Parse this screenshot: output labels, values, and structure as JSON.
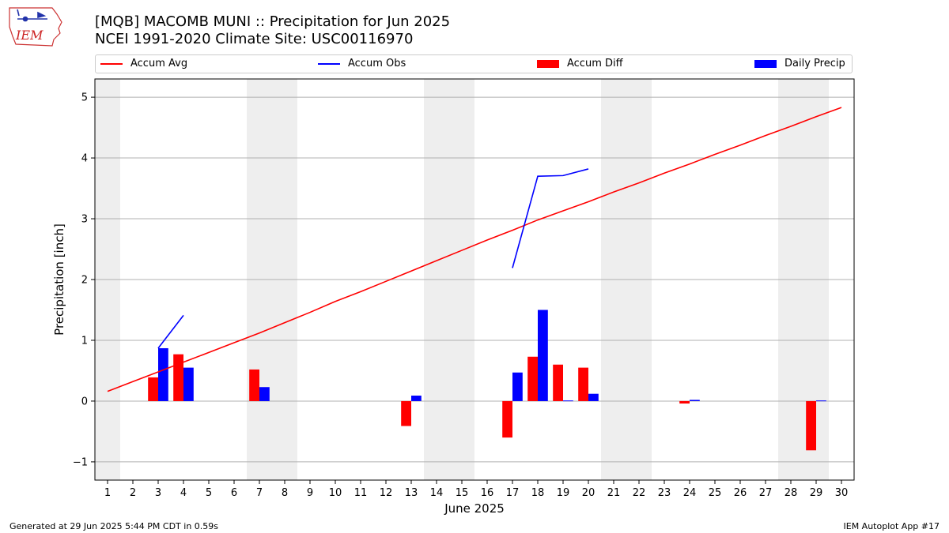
{
  "header": {
    "title_line1": "[MQB] MACOMB MUNI :: Precipitation for Jun 2025",
    "title_line2": "NCEI 1991-2020 Climate Site: USC00116970",
    "logo_text": "IEM"
  },
  "legend": {
    "avg_label": "Accum Avg",
    "obs_label": "Accum Obs",
    "diff_label": "Accum Diff",
    "daily_label": "Daily Precip"
  },
  "colors": {
    "avg": "#ff0000",
    "obs": "#0000ff",
    "diff": "#ff0000",
    "daily": "#0000ff",
    "weekend": "#eeeeee",
    "grid": "#b0b0b0"
  },
  "chart_data": {
    "type": "bar",
    "xlabel": "June 2025",
    "ylabel": "Precipitation [inch]",
    "xlim": [
      0.5,
      30.5
    ],
    "ylim": [
      -1.3,
      5.3
    ],
    "yticks": [
      -1,
      0,
      1,
      2,
      3,
      4,
      5
    ],
    "ytick_labels": [
      "−1",
      "0",
      "1",
      "2",
      "3",
      "4",
      "5"
    ],
    "days": [
      1,
      2,
      3,
      4,
      5,
      6,
      7,
      8,
      9,
      10,
      11,
      12,
      13,
      14,
      15,
      16,
      17,
      18,
      19,
      20,
      21,
      22,
      23,
      24,
      25,
      26,
      27,
      28,
      29,
      30
    ],
    "weekend_days": [
      1,
      7,
      8,
      14,
      15,
      21,
      22,
      28,
      29
    ],
    "grid": true,
    "series": [
      {
        "name": "Accum Avg",
        "kind": "line",
        "points": [
          [
            1,
            0.16
          ],
          [
            2,
            0.32
          ],
          [
            3,
            0.48
          ],
          [
            4,
            0.64
          ],
          [
            5,
            0.8
          ],
          [
            6,
            0.96
          ],
          [
            7,
            1.12
          ],
          [
            8,
            1.29
          ],
          [
            9,
            1.46
          ],
          [
            10,
            1.64
          ],
          [
            11,
            1.8
          ],
          [
            12,
            1.97
          ],
          [
            13,
            2.14
          ],
          [
            14,
            2.31
          ],
          [
            15,
            2.48
          ],
          [
            16,
            2.65
          ],
          [
            17,
            2.81
          ],
          [
            18,
            2.98
          ],
          [
            19,
            3.13
          ],
          [
            20,
            3.28
          ],
          [
            21,
            3.44
          ],
          [
            22,
            3.59
          ],
          [
            23,
            3.75
          ],
          [
            24,
            3.9
          ],
          [
            25,
            4.06
          ],
          [
            26,
            4.21
          ],
          [
            27,
            4.37
          ],
          [
            28,
            4.52
          ],
          [
            29,
            4.68
          ],
          [
            30,
            4.83
          ]
        ]
      },
      {
        "name": "Accum Obs",
        "kind": "line",
        "segments": [
          [
            [
              3,
              0.87
            ],
            [
              4,
              1.41
            ]
          ],
          [
            [
              17,
              2.19
            ],
            [
              18,
              3.7
            ],
            [
              19,
              3.71
            ],
            [
              20,
              3.82
            ]
          ]
        ]
      },
      {
        "name": "Accum Diff",
        "kind": "bar",
        "points": [
          [
            3,
            0.39
          ],
          [
            4,
            0.77
          ],
          [
            7,
            0.52
          ],
          [
            13,
            -0.41
          ],
          [
            17,
            -0.6
          ],
          [
            18,
            0.73
          ],
          [
            19,
            0.6
          ],
          [
            20,
            0.55
          ],
          [
            24,
            -0.04
          ],
          [
            29,
            -0.81
          ]
        ]
      },
      {
        "name": "Daily Precip",
        "kind": "bar",
        "points": [
          [
            3,
            0.87
          ],
          [
            4,
            0.55
          ],
          [
            7,
            0.23
          ],
          [
            13,
            0.09
          ],
          [
            17,
            0.47
          ],
          [
            18,
            1.5
          ],
          [
            19,
            0.01
          ],
          [
            20,
            0.12
          ],
          [
            24,
            0.02
          ],
          [
            29,
            0.01
          ]
        ]
      }
    ]
  },
  "footer": {
    "left": "Generated at 29 Jun 2025 5:44 PM CDT in 0.59s",
    "right": "IEM Autoplot App #17"
  }
}
